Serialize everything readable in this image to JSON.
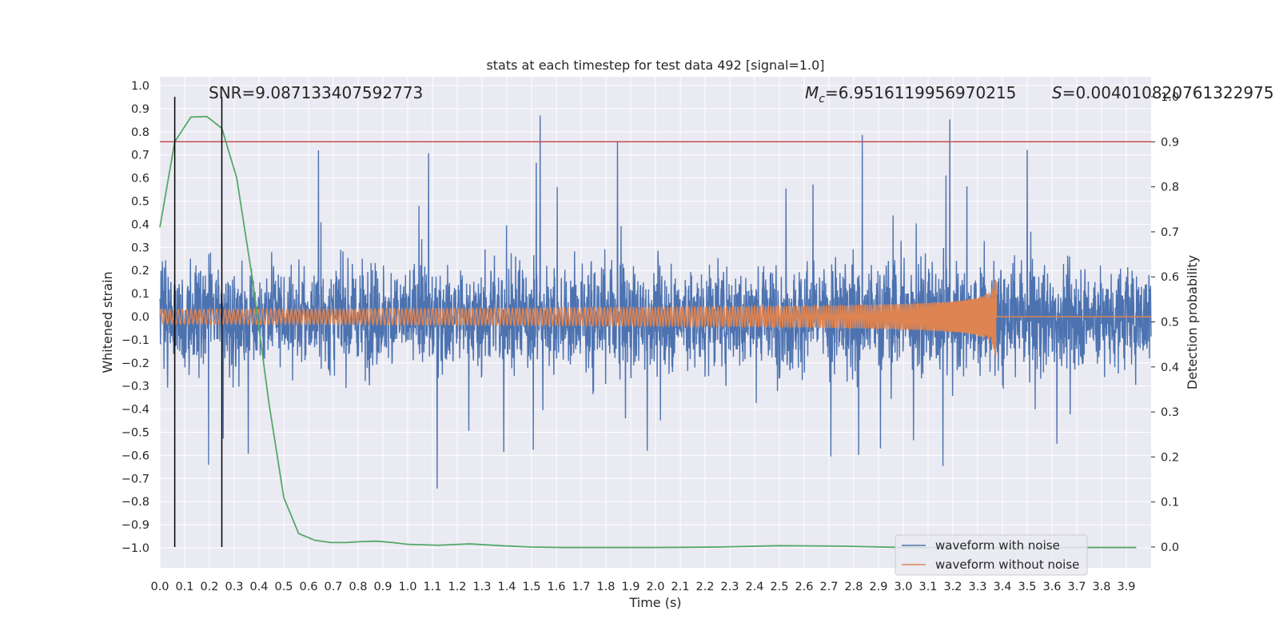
{
  "chart_data": {
    "type": "line",
    "title": "stats at each timestep for test data 492 [signal=1.0]",
    "xlabel": "Time (s)",
    "ylabel_left": "Whitened strain",
    "ylabel_right": "Detection probability",
    "xlim": [
      0.0,
      4.0
    ],
    "ylim_left": [
      -1.08,
      1.05
    ],
    "ylim_right": [
      -0.045,
      1.045
    ],
    "x_ticks": [
      "0.0",
      "0.1",
      "0.2",
      "0.3",
      "0.4",
      "0.5",
      "0.6",
      "0.7",
      "0.8",
      "0.9",
      "1.0",
      "1.1",
      "1.2",
      "1.3",
      "1.4",
      "1.5",
      "1.6",
      "1.7",
      "1.8",
      "1.9",
      "2.0",
      "2.1",
      "2.2",
      "2.3",
      "2.4",
      "2.5",
      "2.6",
      "2.7",
      "2.8",
      "2.9",
      "3.0",
      "3.1",
      "3.2",
      "3.3",
      "3.4",
      "3.5",
      "3.6",
      "3.7",
      "3.8",
      "3.9"
    ],
    "y_ticks_left": [
      "1.0",
      "0.9",
      "0.8",
      "0.7",
      "0.6",
      "0.5",
      "0.4",
      "0.3",
      "0.2",
      "0.1",
      "0.0",
      "−0.1",
      "−0.2",
      "−0.3",
      "−0.4",
      "−0.5",
      "−0.6",
      "−0.7",
      "−0.8",
      "−0.9",
      "−1.0"
    ],
    "y_ticks_right": [
      "1.0",
      "0.9",
      "0.8",
      "0.7",
      "0.6",
      "0.5",
      "0.4",
      "0.3",
      "0.2",
      "0.1",
      "0.0"
    ],
    "annotations": {
      "snr": "SNR=9.087133407592773",
      "mc_symbol": "M",
      "mc_sub": "c",
      "mc_value": "=6.9516119956970215",
      "s_symbol": "S",
      "s_value": "=0.004010820761322975"
    },
    "threshold_right": 0.9,
    "vertical_markers": [
      0.06,
      0.25
    ],
    "detection_probability": {
      "x": [
        0.0,
        0.06,
        0.125,
        0.19,
        0.25,
        0.31,
        0.375,
        0.44,
        0.5,
        0.56,
        0.625,
        0.69,
        0.75,
        0.81,
        0.875,
        0.94,
        1.0,
        1.125,
        1.25,
        1.375,
        1.5,
        1.625,
        1.75,
        1.875,
        2.0,
        2.25,
        2.5,
        2.75,
        3.0,
        3.25,
        3.5,
        3.75,
        3.94
      ],
      "y": [
        0.71,
        0.9,
        0.955,
        0.956,
        0.93,
        0.82,
        0.59,
        0.32,
        0.11,
        0.03,
        0.015,
        0.01,
        0.01,
        0.012,
        0.013,
        0.01,
        0.006,
        0.004,
        0.007,
        0.003,
        0.0,
        -0.001,
        -0.001,
        -0.001,
        -0.001,
        0.0,
        0.003,
        0.002,
        -0.001,
        -0.002,
        -0.001,
        -0.001,
        -0.001
      ]
    },
    "series": [
      {
        "name": "waveform with noise",
        "color": "#4c72b0"
      },
      {
        "name": "waveform without noise",
        "color": "#dd8452"
      }
    ],
    "colors": {
      "plot_bg": "#eaeaf2",
      "grid": "#ffffff",
      "probability": "#55a868",
      "threshold": "#c44e52",
      "marker": "#000000"
    },
    "legend_position": "lower right"
  }
}
